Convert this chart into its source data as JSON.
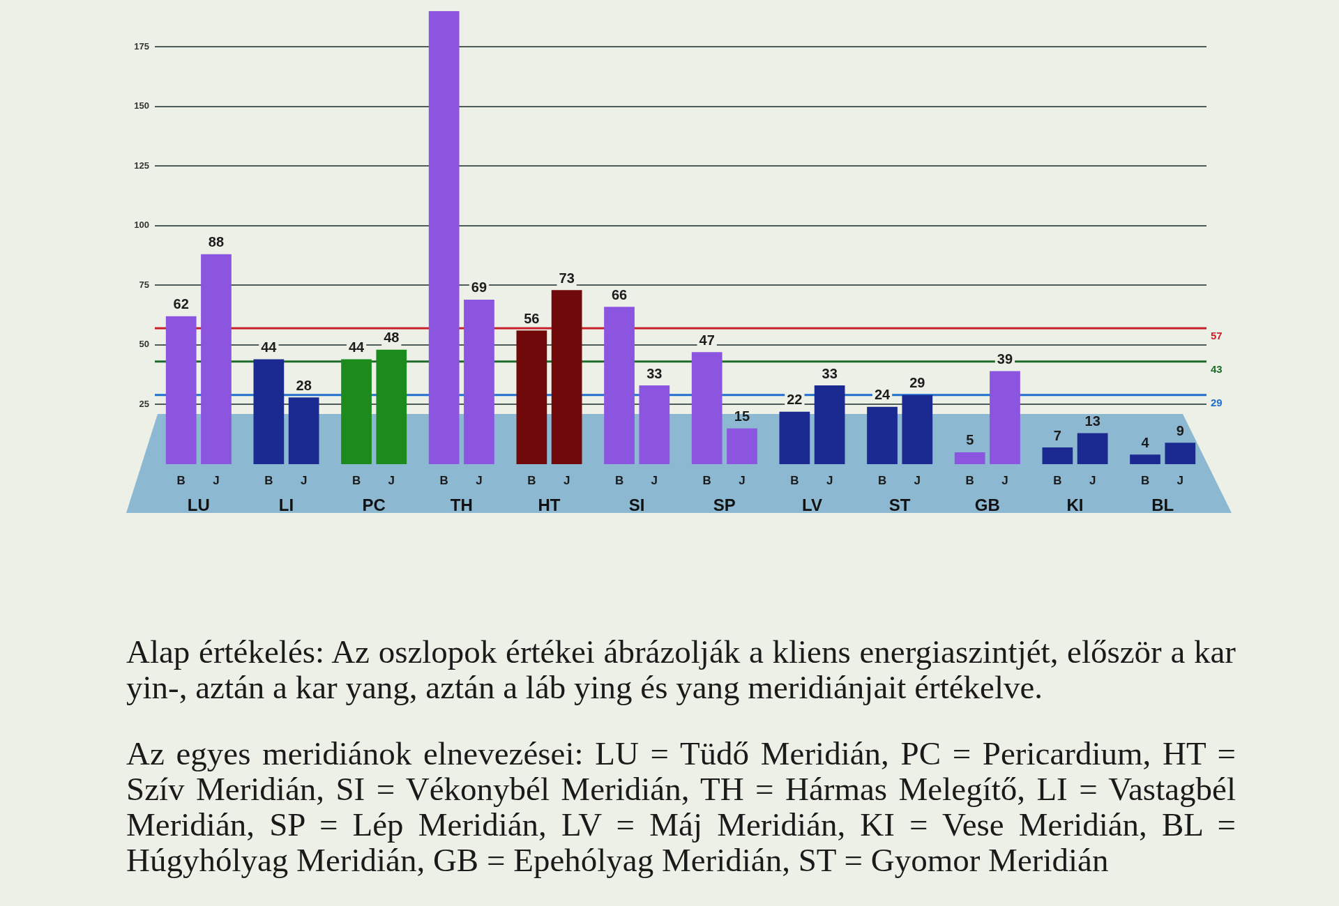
{
  "chart_data": {
    "type": "bar",
    "categories": [
      "LU",
      "LI",
      "PC",
      "TH",
      "HT",
      "SI",
      "SP",
      "LV",
      "ST",
      "GB",
      "KI",
      "BL"
    ],
    "series": [
      {
        "name": "B",
        "colors": [
          "#8b55e0",
          "#1b2a90",
          "#1c8a1c",
          "#8b55e0",
          "#700a0a",
          "#8b55e0",
          "#8b55e0",
          "#1b2a90",
          "#1b2a90",
          "#8b55e0",
          "#1b2a90",
          "#1b2a90"
        ],
        "values": [
          62,
          44,
          44,
          190,
          56,
          66,
          47,
          22,
          24,
          5,
          7,
          4
        ],
        "value_labels": [
          "62",
          "44",
          "44",
          null,
          "56",
          "66",
          "47",
          "22",
          "24",
          "5",
          "7",
          "4"
        ]
      },
      {
        "name": "J",
        "colors": [
          "#8b55e0",
          "#1b2a90",
          "#1c8a1c",
          "#8b55e0",
          "#700a0a",
          "#8b55e0",
          "#8b55e0",
          "#1b2a90",
          "#1b2a90",
          "#8b55e0",
          "#1b2a90",
          "#1b2a90"
        ],
        "values": [
          88,
          28,
          48,
          69,
          73,
          33,
          15,
          33,
          29,
          39,
          13,
          9
        ],
        "value_labels": [
          "88",
          "28",
          "48",
          "69",
          "73",
          "33",
          "15",
          "33",
          "29",
          "39",
          "13",
          "9"
        ]
      }
    ],
    "ylim": [
      0,
      190
    ],
    "yticks": [
      25,
      50,
      75,
      100,
      125,
      150,
      175
    ],
    "grid": "y",
    "legend": false,
    "ref_lines": [
      {
        "axis": "y",
        "value": 57,
        "label": "57",
        "color": "#c8202a"
      },
      {
        "axis": "y",
        "value": 43,
        "label": "43",
        "color": "#1d6b2a"
      },
      {
        "axis": "y",
        "value": 29,
        "label": "29",
        "color": "#1e6fd0"
      }
    ],
    "annotations": [
      "Alap értékelés: Az oszlopok értékei ábrázolják a kliens energiaszintjét, először a kar yin-, aztán a kar yang, aztán a láb ying és yang meridiánjait értékelve.",
      "Az egyes meridiánok elnevezései: LU = Tüdő Meridián, PC = Pericardium, HT = Szív Meridián, SI = Vékonybél Meridián, TH = Hármas Melegítő, LI = Vastagbél Meridián, SP = Lép Meridián, LV = Máj Meridián, KI = Vese Meridián, BL = Húgyhólyag Meridián, GB = Epehólyag Meridián, ST = Gyomor Meridián"
    ]
  }
}
